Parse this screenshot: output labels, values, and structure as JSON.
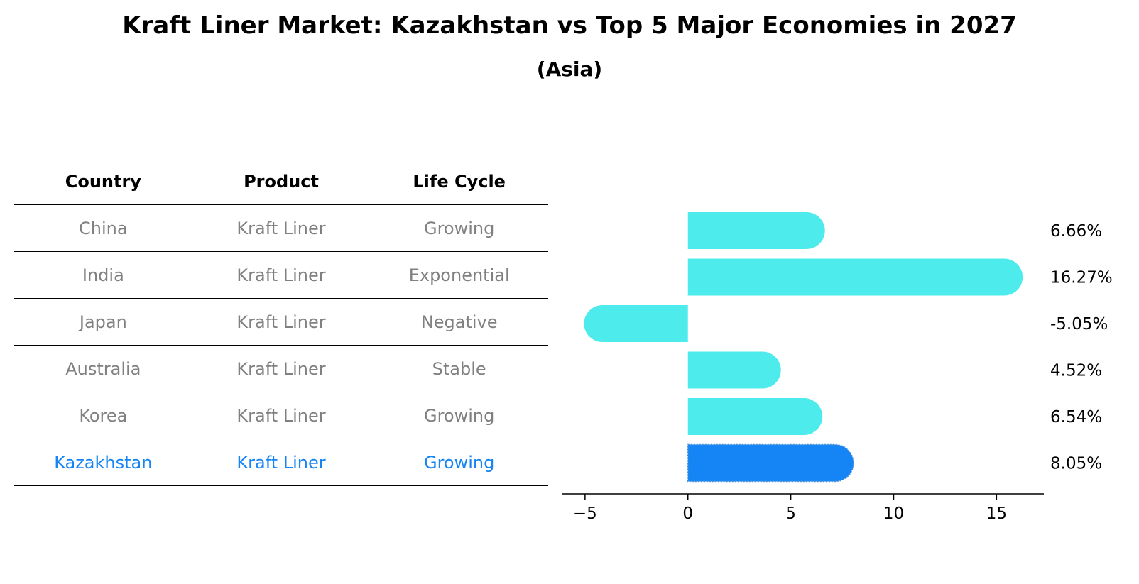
{
  "title": "Kraft Liner Market: Kazakhstan vs Top 5 Major Economies in 2027",
  "subtitle": "(Asia)",
  "colors": {
    "bar": "#4DEBEB",
    "highlight": "#1585F5",
    "row_text": "#808080",
    "highlight_text": "#1585F5"
  },
  "table": {
    "headers": [
      "Country",
      "Product",
      "Life Cycle"
    ],
    "rows": [
      {
        "country": "China",
        "product": "Kraft Liner",
        "life_cycle": "Growing"
      },
      {
        "country": "India",
        "product": "Kraft Liner",
        "life_cycle": "Exponential"
      },
      {
        "country": "Japan",
        "product": "Kraft Liner",
        "life_cycle": "Negative"
      },
      {
        "country": "Australia",
        "product": "Kraft Liner",
        "life_cycle": "Stable"
      },
      {
        "country": "Korea",
        "product": "Kraft Liner",
        "life_cycle": "Growing"
      },
      {
        "country": "Kazakhstan",
        "product": "Kraft Liner",
        "life_cycle": "Growing",
        "highlight": true
      }
    ]
  },
  "chart_data": {
    "type": "bar",
    "orientation": "horizontal",
    "title": "Kraft Liner Market: Kazakhstan vs Top 5 Major Economies in 2027",
    "subtitle": "(Asia)",
    "categories": [
      "China",
      "India",
      "Japan",
      "Australia",
      "Korea",
      "Kazakhstan"
    ],
    "values": [
      6.66,
      16.27,
      -5.05,
      4.52,
      6.54,
      8.05
    ],
    "value_labels": [
      "6.66%",
      "16.27%",
      "-5.05%",
      "4.52%",
      "6.54%",
      "8.05%"
    ],
    "highlight_category": "Kazakhstan",
    "xlabel": "",
    "ylabel": "",
    "xlim": [
      -6.1,
      17.3
    ],
    "xticks": [
      -5,
      0,
      5,
      10,
      15
    ],
    "xtick_labels": [
      "−5",
      "0",
      "5",
      "10",
      "15"
    ],
    "grid": false
  }
}
